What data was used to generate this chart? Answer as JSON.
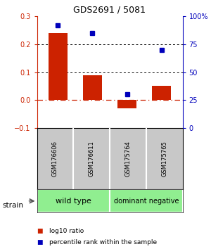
{
  "title": "GDS2691 / 5081",
  "samples": [
    "GSM176606",
    "GSM176611",
    "GSM175764",
    "GSM175765"
  ],
  "log10_ratio": [
    0.24,
    0.09,
    -0.03,
    0.05
  ],
  "percentile_rank": [
    92,
    85,
    30,
    70
  ],
  "bar_color": "#CC2200",
  "dot_color": "#0000BB",
  "ylim_left": [
    -0.1,
    0.3
  ],
  "ylim_right": [
    0,
    100
  ],
  "yticks_left": [
    -0.1,
    0.0,
    0.1,
    0.2,
    0.3
  ],
  "yticks_right": [
    0,
    25,
    50,
    75,
    100
  ],
  "ytick_right_labels": [
    "0",
    "25",
    "50",
    "75",
    "100%"
  ],
  "background_color": "#ffffff",
  "sample_bg_color": "#c8c8c8",
  "group1_color": "#90EE90",
  "group2_color": "#90EE90",
  "group1_label": "wild type",
  "group2_label": "dominant negative",
  "strain_label": "strain",
  "legend_label1": "log10 ratio",
  "legend_label2": "percentile rank within the sample",
  "title_fontsize": 9,
  "tick_fontsize": 7,
  "sample_fontsize": 6,
  "group_fontsize1": 8,
  "group_fontsize2": 7
}
